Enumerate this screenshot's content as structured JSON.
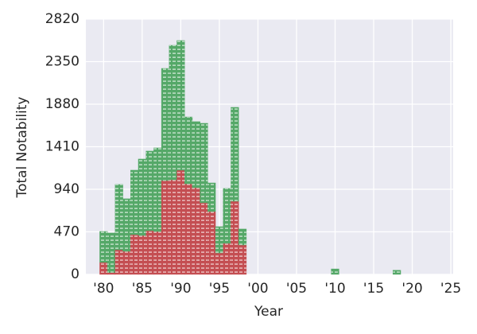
{
  "chart_data": {
    "type": "stacked_bar",
    "x_label": "Year",
    "y_label": "Total Notability",
    "x": [
      1980,
      1981,
      1982,
      1983,
      1984,
      1985,
      1986,
      1987,
      1988,
      1989,
      1990,
      1991,
      1992,
      1993,
      1994,
      1995,
      1996,
      1997,
      1998,
      2010,
      2018
    ],
    "series": [
      {
        "color": "#c44e52",
        "values": [
          132,
          20,
          272,
          255,
          439,
          430,
          483,
          474,
          1037,
          1045,
          1151,
          1001,
          958,
          791,
          694,
          237,
          343,
          808,
          325,
          0,
          0
        ]
      },
      {
        "color": "#55a868",
        "values": [
          342,
          437,
          721,
          580,
          712,
          844,
          879,
          923,
          1238,
          1485,
          1432,
          738,
          729,
          878,
          316,
          290,
          606,
          1037,
          176,
          60,
          45
        ]
      }
    ],
    "xlim": [
      1977.7,
      2025.3
    ],
    "xticks": [
      {
        "value": 1980,
        "label": "'80"
      },
      {
        "value": 1985,
        "label": "'85"
      },
      {
        "value": 1990,
        "label": "'90"
      },
      {
        "value": 1995,
        "label": "'95"
      },
      {
        "value": 2000,
        "label": "'00"
      },
      {
        "value": 2005,
        "label": "'05"
      },
      {
        "value": 2010,
        "label": "'10"
      },
      {
        "value": 2015,
        "label": "'15"
      },
      {
        "value": 2020,
        "label": "'20"
      },
      {
        "value": 2025,
        "label": "'25"
      }
    ],
    "ylim": [
      0,
      2820
    ],
    "yticks": [
      0,
      470,
      940,
      1410,
      1880,
      2350,
      2820
    ],
    "grid": true
  }
}
